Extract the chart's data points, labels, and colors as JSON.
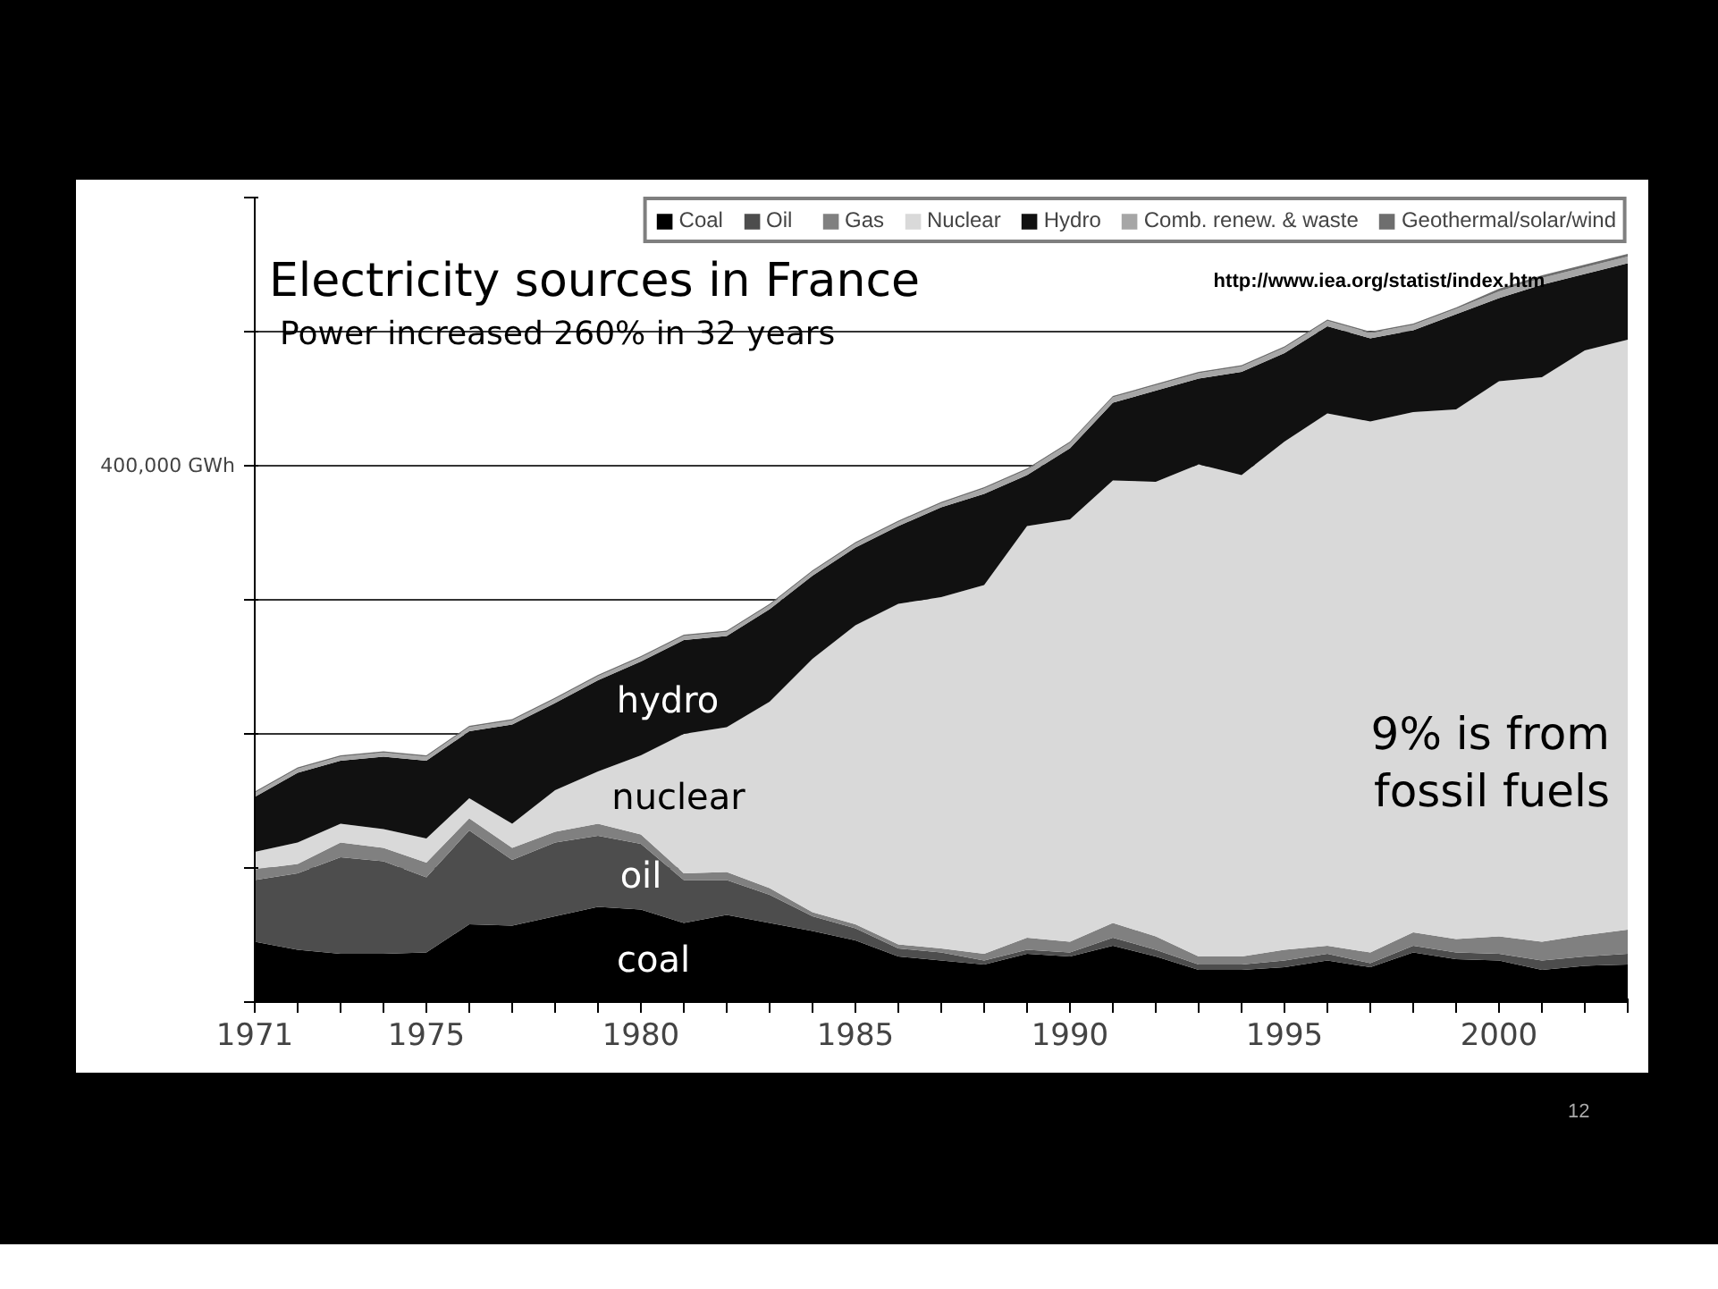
{
  "chart_data": {
    "type": "area",
    "stacked": true,
    "title": "Electricity sources in France",
    "subtitle": "Power increased 260% in 32 years",
    "x": [
      1971,
      1972,
      1973,
      1974,
      1975,
      1976,
      1977,
      1978,
      1979,
      1980,
      1981,
      1982,
      1983,
      1984,
      1985,
      1986,
      1987,
      1988,
      1989,
      1990,
      1991,
      1992,
      1993,
      1994,
      1995,
      1996,
      1997,
      1998,
      1999,
      2000,
      2001,
      2002,
      2003
    ],
    "series": [
      {
        "name": "Coal",
        "color": "#000000",
        "values": [
          45000,
          39000,
          36000,
          36000,
          37000,
          58000,
          57000,
          64000,
          71000,
          69000,
          59000,
          65000,
          59000,
          53000,
          46000,
          34000,
          31000,
          28000,
          36000,
          34000,
          42000,
          34000,
          24000,
          24000,
          26000,
          31000,
          26000,
          37000,
          32000,
          31000,
          24000,
          27000,
          28000
        ]
      },
      {
        "name": "Oil",
        "color": "#4d4d4d",
        "values": [
          46000,
          57000,
          72000,
          69000,
          56000,
          70000,
          49000,
          55000,
          53000,
          49000,
          32000,
          26000,
          21000,
          11000,
          9000,
          6000,
          6000,
          3000,
          3000,
          3000,
          6000,
          5000,
          4000,
          4000,
          5000,
          5000,
          3000,
          5000,
          5000,
          5000,
          7000,
          7000,
          8000
        ]
      },
      {
        "name": "Gas",
        "color": "#808080",
        "values": [
          8000,
          7000,
          11000,
          10000,
          11000,
          9000,
          9000,
          8000,
          9000,
          7000,
          5000,
          6000,
          5000,
          3000,
          3000,
          3000,
          3000,
          5000,
          9000,
          8000,
          11000,
          10000,
          6000,
          6000,
          8000,
          6000,
          8000,
          10000,
          10000,
          13000,
          14000,
          16000,
          18000
        ]
      },
      {
        "name": "Nuclear",
        "color": "#d9d9d9",
        "values": [
          13000,
          16000,
          14000,
          14000,
          18000,
          15000,
          18000,
          31000,
          39000,
          59000,
          104000,
          108000,
          139000,
          189000,
          223000,
          254000,
          262000,
          275000,
          307000,
          315000,
          330000,
          339000,
          367000,
          359000,
          379000,
          397000,
          396000,
          388000,
          395000,
          414000,
          421000,
          436000,
          440000
        ]
      },
      {
        "name": "Hydro",
        "color": "#111111",
        "values": [
          41000,
          52000,
          47000,
          54000,
          58000,
          50000,
          74000,
          65000,
          68000,
          70000,
          70000,
          68000,
          69000,
          62000,
          58000,
          58000,
          67000,
          68000,
          38000,
          53000,
          58000,
          68000,
          64000,
          77000,
          66000,
          65000,
          62000,
          61000,
          71000,
          62000,
          69000,
          57000,
          57000
        ]
      },
      {
        "name": "Comb. renew. & waste",
        "color": "#a6a6a6",
        "values": [
          3000,
          3000,
          3000,
          3000,
          3000,
          3000,
          3000,
          3000,
          3000,
          3000,
          3000,
          3000,
          3000,
          3000,
          3000,
          3000,
          3000,
          4000,
          4000,
          4000,
          4000,
          4000,
          4000,
          4000,
          4000,
          4000,
          4000,
          4000,
          4000,
          5000,
          5000,
          5000,
          5000
        ]
      },
      {
        "name": "Geothermal/solar/wind",
        "color": "#6e6e6e",
        "values": [
          1000,
          1000,
          1000,
          1000,
          1000,
          1000,
          1000,
          1000,
          1000,
          1000,
          1000,
          1000,
          1000,
          1000,
          1000,
          1000,
          1000,
          1000,
          1000,
          1000,
          1000,
          1000,
          1000,
          1000,
          1000,
          1000,
          1000,
          1000,
          1000,
          2000,
          2000,
          2000,
          2000
        ]
      }
    ],
    "xlim": [
      1971,
      2003
    ],
    "xticks": [
      1971,
      {
        "value": 1972,
        "label": null
      },
      {
        "value": 1973,
        "label": null
      },
      {
        "value": 1974,
        "label": null
      },
      1975,
      {
        "value": 1976,
        "label": null
      },
      {
        "value": 1977,
        "label": null
      },
      {
        "value": 1978,
        "label": null
      },
      {
        "value": 1979,
        "label": null
      },
      1980,
      {
        "value": 1981,
        "label": null
      },
      {
        "value": 1982,
        "label": null
      },
      {
        "value": 1983,
        "label": null
      },
      {
        "value": 1984,
        "label": null
      },
      1985,
      {
        "value": 1986,
        "label": null
      },
      {
        "value": 1987,
        "label": null
      },
      {
        "value": 1988,
        "label": null
      },
      {
        "value": 1989,
        "label": null
      },
      1990,
      {
        "value": 1991,
        "label": null
      },
      {
        "value": 1992,
        "label": null
      },
      {
        "value": 1993,
        "label": null
      },
      {
        "value": 1994,
        "label": null
      },
      1995,
      {
        "value": 1996,
        "label": null
      },
      {
        "value": 1997,
        "label": null
      },
      {
        "value": 1998,
        "label": null
      },
      {
        "value": 1999,
        "label": null
      },
      2000,
      {
        "value": 2001,
        "label": null
      },
      {
        "value": 2002,
        "label": null
      },
      {
        "value": 2003,
        "label": null
      }
    ],
    "ylim": [
      0,
      600000
    ],
    "yticks": [
      {
        "value": 0,
        "label": null
      },
      {
        "value": 100000,
        "label": null
      },
      {
        "value": 200000,
        "label": null
      },
      {
        "value": 300000,
        "label": null
      },
      {
        "value": 400000,
        "label": "400,000 GWh"
      },
      {
        "value": 500000,
        "label": null
      },
      {
        "value": 600000,
        "label": null
      }
    ],
    "grid": "y",
    "legend": "top",
    "annotations": [
      "hydro",
      "nuclear",
      "oil",
      "coal",
      "http://www.iea.org/statist/index.htm",
      "9% is from\nfossil fuels",
      "12"
    ]
  }
}
